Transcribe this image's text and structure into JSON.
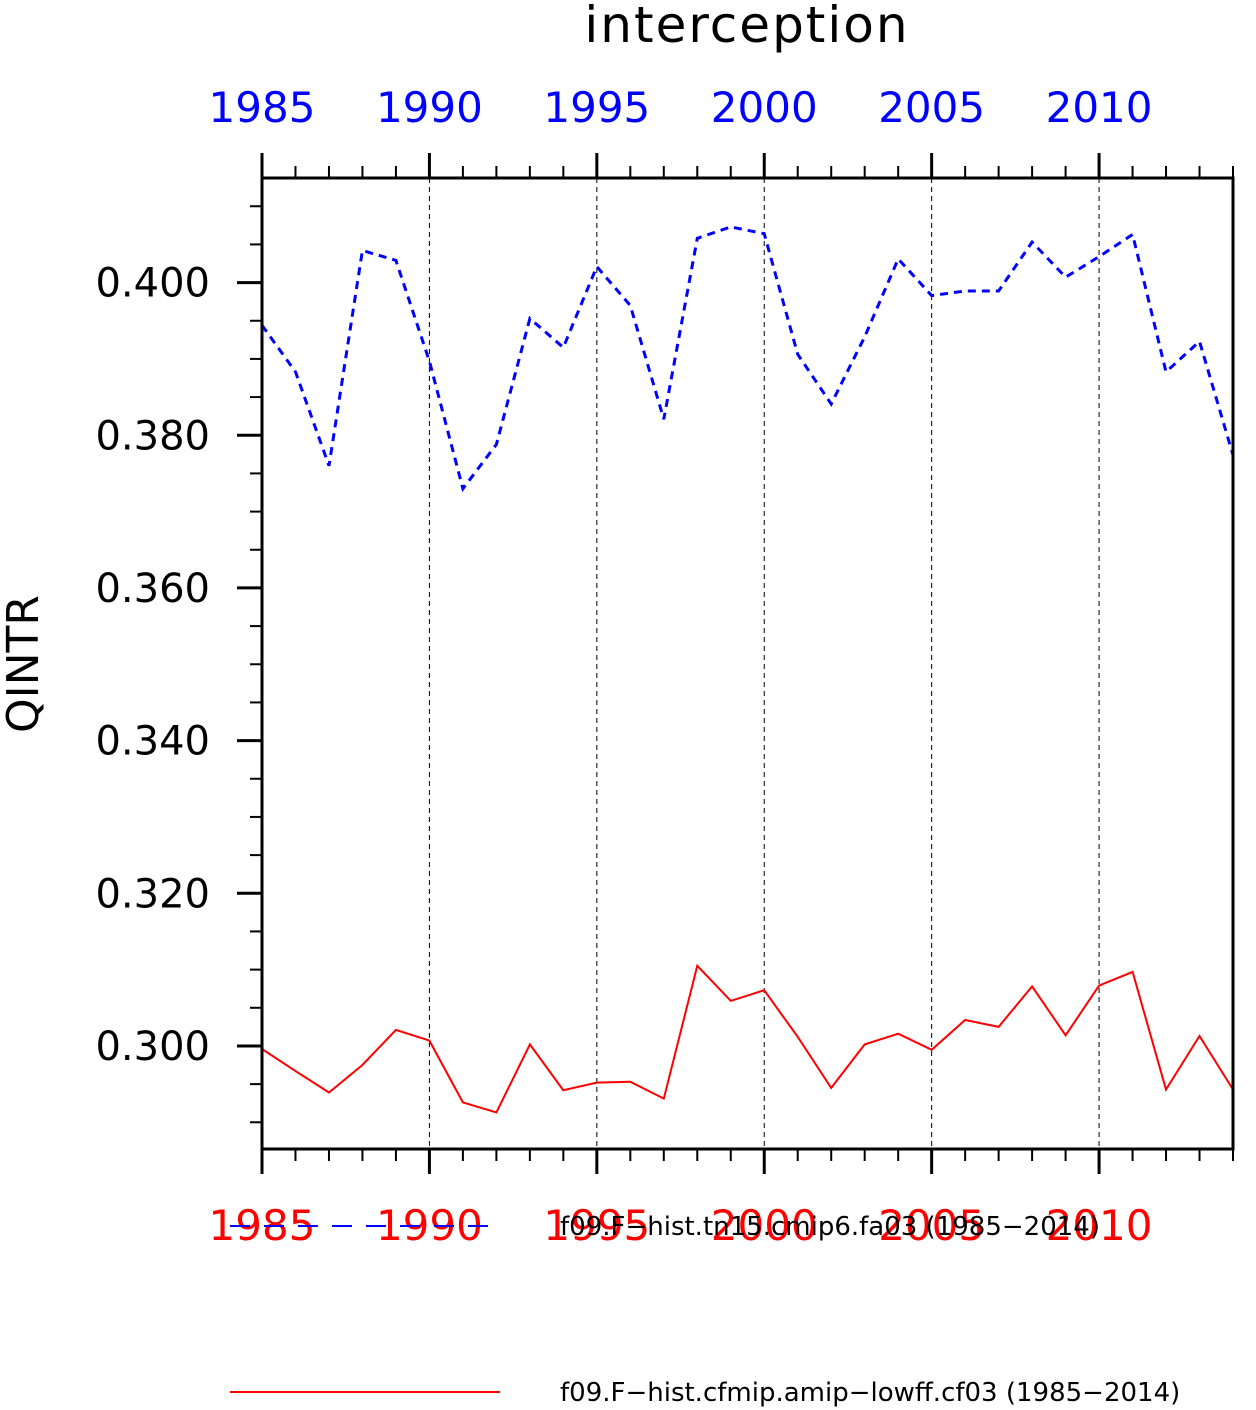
{
  "chart_data": {
    "type": "line",
    "title": "interception",
    "ylabel": "QINTR",
    "xlabel": "",
    "xlim": [
      1985,
      2014
    ],
    "ylim": [
      0.2865,
      0.4137
    ],
    "x_ticks": [
      1985,
      1990,
      1995,
      2000,
      2005,
      2010
    ],
    "x_tick_labels": [
      "1985",
      "1990",
      "1995",
      "2000",
      "2005",
      "2010"
    ],
    "y_ticks": [
      0.3,
      0.32,
      0.34,
      0.36,
      0.38,
      0.4
    ],
    "y_tick_labels": [
      "0.300",
      "0.320",
      "0.340",
      "0.360",
      "0.380",
      "0.400"
    ],
    "grid": "vertical dashed at major x ticks",
    "legend_position": "bottom",
    "x": [
      1985,
      1986,
      1987,
      1988,
      1989,
      1990,
      1991,
      1992,
      1993,
      1994,
      1995,
      1996,
      1997,
      1998,
      1999,
      2000,
      2001,
      2002,
      2003,
      2004,
      2005,
      2006,
      2007,
      2008,
      2009,
      2010,
      2011,
      2012,
      2013,
      2014
    ],
    "series": [
      {
        "name": "f09.F−hist.tn15.cmip6.fa03 (1985−2014)",
        "color": "#0000ff",
        "style": "dashed",
        "values": [
          0.3944,
          0.3883,
          0.376,
          0.4042,
          0.4029,
          0.3897,
          0.373,
          0.3788,
          0.3953,
          0.3915,
          0.4021,
          0.397,
          0.3821,
          0.4058,
          0.4073,
          0.4064,
          0.3906,
          0.3841,
          0.3929,
          0.4031,
          0.3983,
          0.3989,
          0.3989,
          0.4053,
          0.4007,
          0.4034,
          0.4063,
          0.3883,
          0.3923,
          0.3774
        ]
      },
      {
        "name": "f09.F−hist.cfmip.amip−lowff.cf03 (1985−2014)",
        "color": "#ff0000",
        "style": "solid",
        "values": [
          0.2996,
          0.2967,
          0.2939,
          0.2975,
          0.3021,
          0.3007,
          0.2926,
          0.2913,
          0.3002,
          0.2942,
          0.2952,
          0.2953,
          0.2931,
          0.3105,
          0.3059,
          0.3073,
          0.3012,
          0.2945,
          0.3002,
          0.3016,
          0.2995,
          0.3034,
          0.3025,
          0.3078,
          0.3014,
          0.3079,
          0.3097,
          0.2943,
          0.3013,
          0.2943
        ]
      }
    ]
  }
}
